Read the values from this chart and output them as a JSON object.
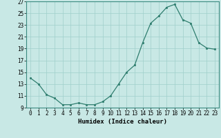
{
  "x": [
    0,
    1,
    2,
    3,
    4,
    5,
    6,
    7,
    8,
    9,
    10,
    11,
    12,
    13,
    14,
    15,
    16,
    17,
    18,
    19,
    20,
    21,
    22,
    23
  ],
  "y": [
    14.0,
    13.0,
    11.2,
    10.6,
    9.5,
    9.5,
    9.8,
    9.5,
    9.5,
    10.0,
    11.0,
    13.0,
    15.0,
    16.2,
    20.0,
    23.3,
    24.5,
    26.0,
    26.5,
    23.9,
    23.3,
    20.0,
    19.1,
    18.9
  ],
  "line_color": "#2e7d6e",
  "marker_color": "#2e7d6e",
  "bg_color": "#c8e8e5",
  "grid_color": "#9fcfcb",
  "xlabel": "Humidex (Indice chaleur)",
  "xlim": [
    -0.5,
    23.5
  ],
  "ylim": [
    9,
    27
  ],
  "yticks": [
    9,
    11,
    13,
    15,
    17,
    19,
    21,
    23,
    25,
    27
  ],
  "xtick_labels": [
    "0",
    "1",
    "2",
    "3",
    "4",
    "5",
    "6",
    "7",
    "8",
    "9",
    "10",
    "11",
    "12",
    "13",
    "14",
    "15",
    "16",
    "17",
    "18",
    "19",
    "20",
    "21",
    "22",
    "23"
  ],
  "label_fontsize": 6.5,
  "tick_fontsize": 5.5
}
